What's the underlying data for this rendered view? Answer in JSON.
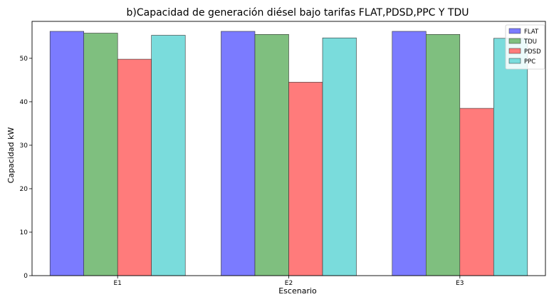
{
  "chart_data": {
    "type": "bar",
    "title": "b)Capacidad de generación diésel bajo tarifas FLAT,PDSD,PPC Y TDU",
    "xlabel": "Escenario",
    "ylabel": "Capacidad kW",
    "categories": [
      "E1",
      "E2",
      "E3"
    ],
    "series": [
      {
        "name": "FLAT",
        "values": [
          56.2,
          56.2,
          56.2
        ],
        "color": "#7b7bff"
      },
      {
        "name": "TDU",
        "values": [
          55.8,
          55.5,
          55.5
        ],
        "color": "#7fbf7f"
      },
      {
        "name": "PDSD",
        "values": [
          49.8,
          44.5,
          38.5
        ],
        "color": "#ff7b7b"
      },
      {
        "name": "PPC",
        "values": [
          55.3,
          54.7,
          54.6
        ],
        "color": "#7adcdc"
      }
    ],
    "ylim": [
      0,
      58.5
    ],
    "yticks": [
      0,
      10,
      20,
      30,
      40,
      50
    ],
    "grid": false,
    "legend_position": "top-right"
  }
}
